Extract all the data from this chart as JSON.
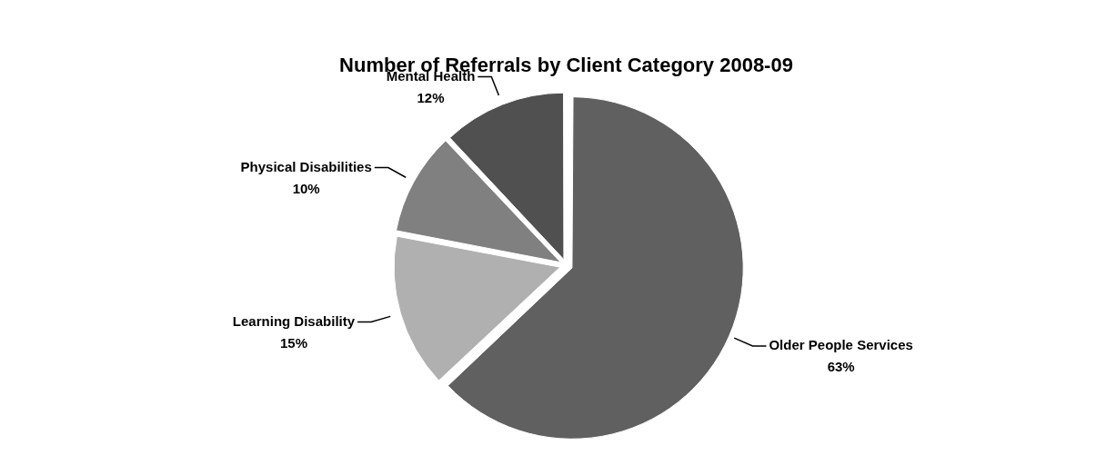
{
  "chart_data": {
    "type": "pie",
    "title": "Number of Referrals by Client Category 2008-09",
    "categories": [
      "Older People Services",
      "Learning Disability",
      "Physical Disabilities",
      "Mental Health"
    ],
    "values": [
      63,
      15,
      10,
      12
    ],
    "value_labels": [
      "63%",
      "15%",
      "10%",
      "12%"
    ],
    "colors": [
      "#606060",
      "#b0b0b0",
      "#808080",
      "#505050"
    ],
    "legend": false
  }
}
